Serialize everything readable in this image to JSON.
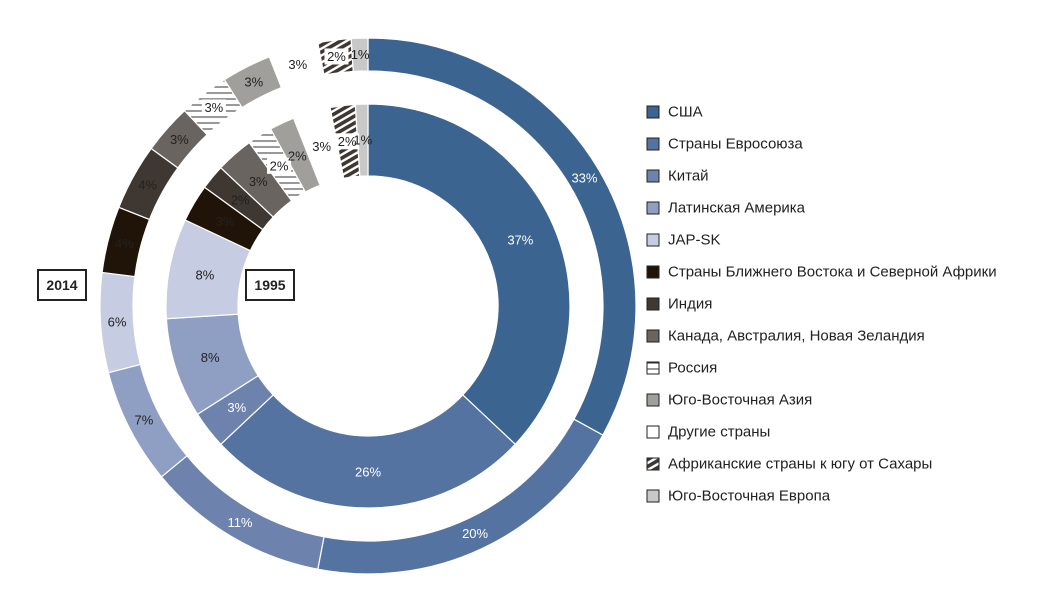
{
  "chart_data": {
    "type": "donut",
    "categories": [
      "США",
      "Страны Евросоюза",
      "Китай",
      "Латинская Америка",
      "JAP-SK",
      "Страны Ближнего Востока и Северной Африки",
      "Индия",
      "Канада, Австралия, Новая Зеландия",
      "Россия",
      "Юго-Восточная Азия",
      "Другие страны",
      "Африканские страны к югу от Сахары",
      "Юго-Восточная Европа"
    ],
    "series": [
      {
        "name": "1995",
        "ring": "inner",
        "values": [
          37,
          26,
          3,
          8,
          8,
          3,
          2,
          3,
          2,
          2,
          3,
          2,
          1
        ],
        "labels": [
          "37%",
          "26%",
          "3%",
          "8%",
          "8%",
          "3%",
          "2%",
          "3%",
          "2%",
          "2%",
          "3%",
          "2%",
          "1%"
        ]
      },
      {
        "name": "2014",
        "ring": "outer",
        "values": [
          33,
          20,
          11,
          7,
          6,
          4,
          4,
          3,
          3,
          3,
          3,
          2,
          1
        ],
        "labels": [
          "33%",
          "20%",
          "11%",
          "7%",
          "6%",
          "4%",
          "4%",
          "3%",
          "3%",
          "3%",
          "3%",
          "2%",
          "1%"
        ]
      }
    ],
    "legend_position": "right"
  },
  "colors": [
    "#3b6491",
    "#5473a0",
    "#6d83ad",
    "#8f9fc3",
    "#c6cde2",
    "#201409",
    "#3e3732",
    "#6a6460",
    "#ffffff",
    "#a19f9c",
    "#ffffff",
    "#4a4540",
    "#c8c8c8"
  ],
  "patterns": [
    "",
    "",
    "",
    "",
    "",
    "",
    "",
    "",
    "hlines",
    "",
    "",
    "dstripes",
    ""
  ]
}
